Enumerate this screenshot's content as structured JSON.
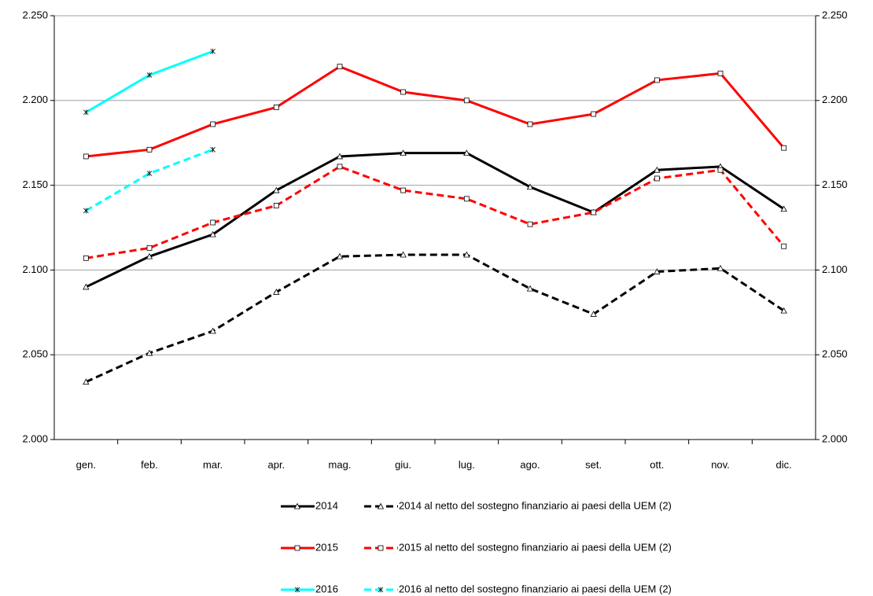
{
  "chart_data": {
    "type": "line",
    "categories": [
      "gen.",
      "feb.",
      "mar.",
      "apr.",
      "mag.",
      "giu.",
      "lug.",
      "ago.",
      "set.",
      "ott.",
      "nov.",
      "dic."
    ],
    "ylim": [
      2000,
      2250
    ],
    "yticks": [
      {
        "value": 2000,
        "label": "2.000"
      },
      {
        "value": 2050,
        "label": "2.050"
      },
      {
        "value": 2100,
        "label": "2.100"
      },
      {
        "value": 2150,
        "label": "2.150"
      },
      {
        "value": 2200,
        "label": "2.200"
      },
      {
        "value": 2250,
        "label": "2.250"
      }
    ],
    "y2lim": [
      2000,
      2250
    ],
    "y2ticks": [
      {
        "value": 2000,
        "label": "2.000"
      },
      {
        "value": 2050,
        "label": "2.050"
      },
      {
        "value": 2100,
        "label": "2.100"
      },
      {
        "value": 2150,
        "label": "2.150"
      },
      {
        "value": 2200,
        "label": "2.200"
      },
      {
        "value": 2250,
        "label": "2.250"
      }
    ],
    "grid": true,
    "legend": "bottom",
    "series": [
      {
        "name": "2014",
        "color": "#000000",
        "marker": "triangle",
        "dashed": false,
        "values": [
          2090,
          2108,
          2121,
          2147,
          2167,
          2169,
          2169,
          2149,
          2134,
          2159,
          2161,
          2136
        ]
      },
      {
        "name": "2014 al netto del sostegno finanziario ai paesi della UEM (2)",
        "color": "#000000",
        "marker": "triangle",
        "dashed": true,
        "values": [
          2034,
          2051,
          2064,
          2087,
          2108,
          2109,
          2109,
          2089,
          2074,
          2099,
          2101,
          2076
        ]
      },
      {
        "name": "2015",
        "color": "#ff0000",
        "marker": "square",
        "dashed": false,
        "values": [
          2167,
          2171,
          2186,
          2196,
          2220,
          2205,
          2200,
          2186,
          2192,
          2212,
          2216,
          2172
        ]
      },
      {
        "name": "2015 al netto del sostegno finanziario ai paesi della UEM (2)",
        "color": "#ff0000",
        "marker": "square",
        "dashed": true,
        "values": [
          2107,
          2113,
          2128,
          2138,
          2161,
          2147,
          2142,
          2127,
          2134,
          2154,
          2159,
          2114
        ]
      },
      {
        "name": "2016",
        "color": "#00ffff",
        "marker": "x",
        "dashed": false,
        "values": [
          2193,
          2215,
          2229,
          null,
          null,
          null,
          null,
          null,
          null,
          null,
          null,
          null
        ]
      },
      {
        "name": "2016 al netto del sostegno finanziario ai paesi della UEM (2)",
        "color": "#00ffff",
        "marker": "x",
        "dashed": true,
        "values": [
          2135,
          2157,
          2171,
          null,
          null,
          null,
          null,
          null,
          null,
          null,
          null,
          null
        ]
      }
    ]
  }
}
